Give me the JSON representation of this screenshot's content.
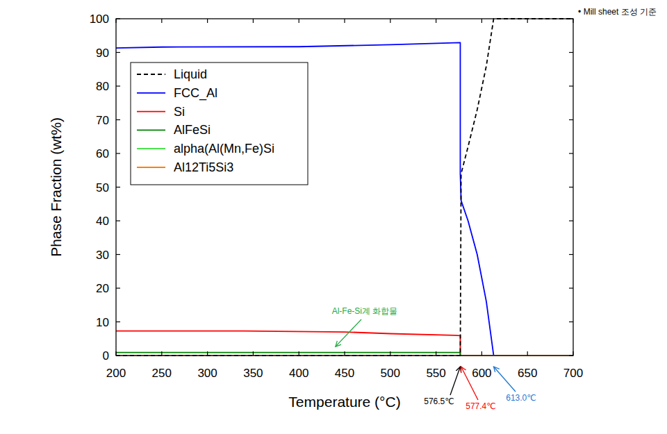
{
  "chart_data": {
    "type": "line",
    "note": "• Mill sheet 조성 기준",
    "x_label": "Temperature (°C)",
    "y_label": "Phase Fraction (wt%)",
    "xlim": [
      200,
      700
    ],
    "ylim": [
      0,
      100
    ],
    "xticks": [
      200,
      250,
      300,
      350,
      400,
      450,
      500,
      550,
      600,
      650,
      700
    ],
    "yticks": [
      0,
      10,
      20,
      30,
      40,
      50,
      60,
      70,
      80,
      90,
      100
    ],
    "legend": "upper-left",
    "grid": false,
    "series": [
      {
        "name": "Liquid",
        "color": "#000000",
        "line_style": "dashed",
        "x": [
          200,
          576.5,
          577.4,
          585,
          595,
          605,
          613,
          700
        ],
        "values": [
          0,
          0,
          54,
          62,
          73,
          86,
          100,
          100
        ]
      },
      {
        "name": "FCC_Al",
        "color": "#0000ff",
        "line_style": "solid",
        "x": [
          200,
          250,
          400,
          500,
          576.5,
          576.5,
          577.4,
          585,
          595,
          605,
          613,
          700
        ],
        "values": [
          91.3,
          91.6,
          91.7,
          92.3,
          92.9,
          54,
          46,
          40,
          30,
          16,
          0,
          0
        ]
      },
      {
        "name": "Si",
        "color": "#ff0000",
        "line_style": "solid",
        "x": [
          200,
          340,
          450,
          500,
          570,
          576.5,
          576.5,
          700
        ],
        "values": [
          7.3,
          7.3,
          7.0,
          6.5,
          6.0,
          5.9,
          0,
          0
        ]
      },
      {
        "name": "AlFeSi",
        "color": "#008000",
        "line_style": "solid",
        "x": [
          200,
          576.5,
          576.5,
          700
        ],
        "values": [
          0.9,
          0.9,
          0,
          0
        ]
      },
      {
        "name": "alpha(Al(Mn,Fe)Si",
        "color": "#33dd33",
        "line_style": "solid",
        "x": [
          200,
          700
        ],
        "values": [
          0,
          0
        ]
      },
      {
        "name": "Al12Ti5Si3",
        "color": "#ff8000",
        "line_style": "solid",
        "x": [
          200,
          700
        ],
        "values": [
          0,
          0
        ]
      }
    ],
    "annotations": [
      {
        "text": "Al-Fe-Si계 화합물",
        "color": "#22aa44",
        "x": 440,
        "y": 1
      },
      {
        "text": "576.5℃",
        "color": "#000000",
        "x": 576.5
      },
      {
        "text": "577.4℃",
        "color": "#ff0000",
        "x": 577.4
      },
      {
        "text": "613.0℃",
        "color": "#1e78d2",
        "x": 613
      }
    ]
  }
}
